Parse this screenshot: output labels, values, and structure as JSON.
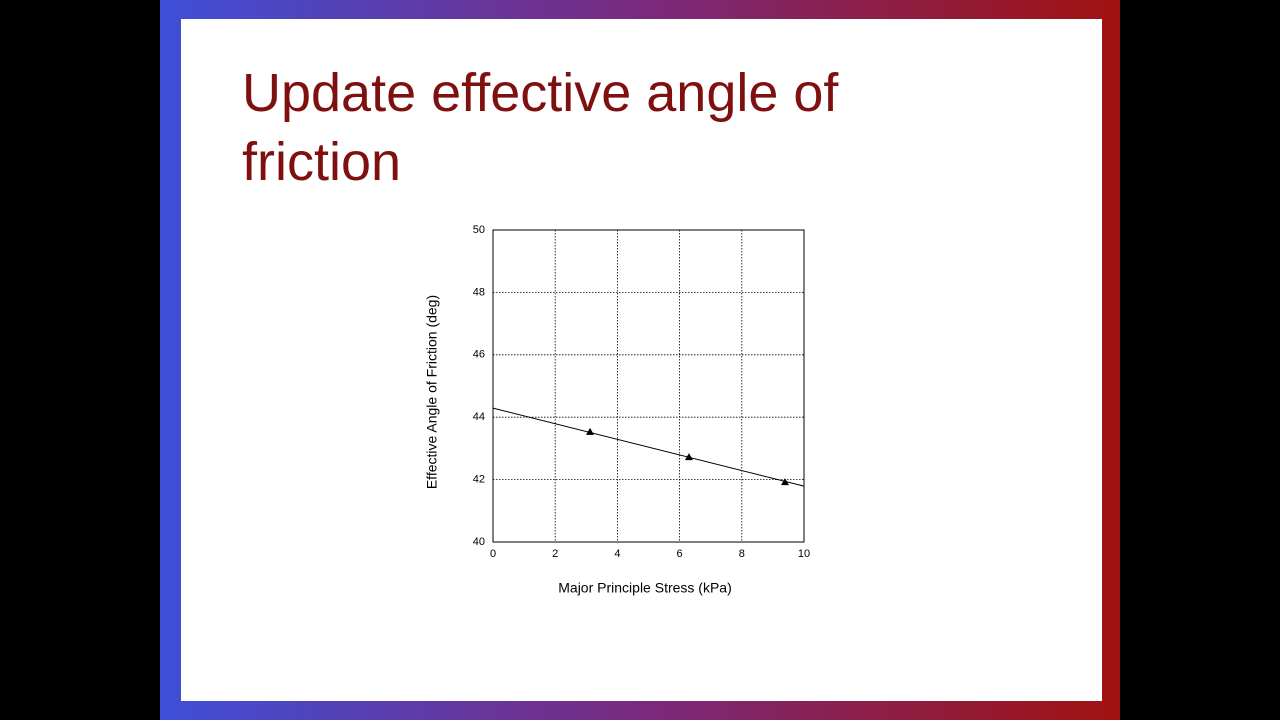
{
  "title": "Update effective angle of friction",
  "chart_data": {
    "type": "scatter",
    "x_label": "Major Principle Stress (kPa)",
    "y_label": "Effective Angle of Friction (deg)",
    "x": [
      3.12,
      6.3,
      9.39
    ],
    "values": [
      43.53,
      42.72,
      41.92
    ],
    "color": "#000000",
    "trend": {
      "x": [
        0,
        10
      ],
      "values": [
        44.29,
        41.79
      ],
      "color": "#000000"
    },
    "xlim": [
      0,
      10
    ],
    "ylim": [
      40,
      50
    ],
    "xticks": [
      0,
      2,
      4,
      6,
      8,
      10
    ],
    "yticks": [
      40,
      42,
      44,
      46,
      48,
      50
    ],
    "grid": true
  }
}
